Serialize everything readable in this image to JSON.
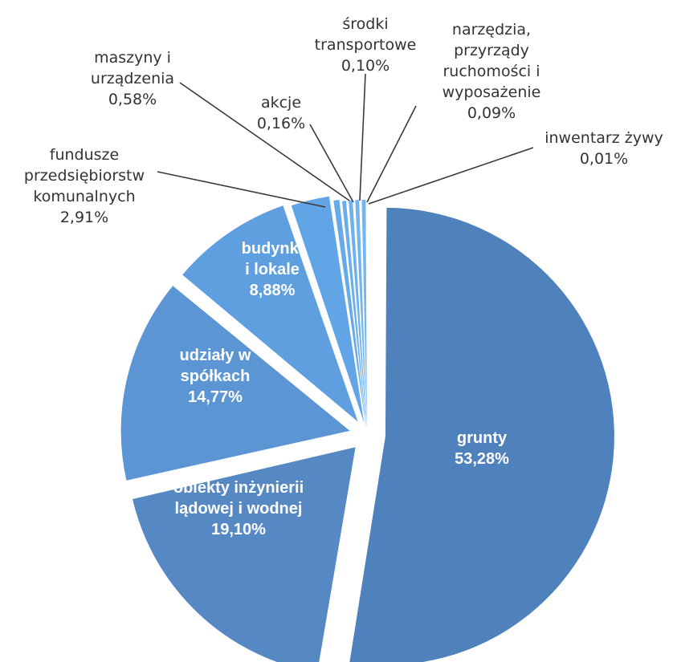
{
  "chart_data": {
    "type": "pie",
    "title": "",
    "legend": "none",
    "slices": [
      {
        "name": "grunty",
        "label_lines": [
          "grunty"
        ],
        "value": 53.28,
        "value_text": "53,28%",
        "color": "#4f81bd",
        "label_position": "inside"
      },
      {
        "name": "obiekty inżynierii lądowej i wodnej",
        "label_lines": [
          "obiekty inżynierii",
          "lądowej i wodnej"
        ],
        "value": 19.1,
        "value_text": "19,10%",
        "color": "#5689c4",
        "label_position": "inside"
      },
      {
        "name": "udziały w spółkach",
        "label_lines": [
          "udziały w",
          "spółkach"
        ],
        "value": 14.77,
        "value_text": "14,77%",
        "color": "#5b95d4",
        "label_position": "inside"
      },
      {
        "name": "budynki i lokale",
        "label_lines": [
          "budynki",
          "i lokale"
        ],
        "value": 8.88,
        "value_text": "8,88%",
        "color": "#5f9fe0",
        "label_position": "inside"
      },
      {
        "name": "fundusze przedsiębiorstw komunalnych",
        "label_lines": [
          "fundusze",
          "przedsiębiorstw",
          "komunalnych"
        ],
        "value": 2.91,
        "value_text": "2,91%",
        "color": "#62a5e6",
        "label_position": "outside"
      },
      {
        "name": "maszyny i urządzenia",
        "label_lines": [
          "maszyny i",
          "urządzenia"
        ],
        "value": 0.58,
        "value_text": "0,58%",
        "color": "#66aaea",
        "label_position": "outside"
      },
      {
        "name": "akcje",
        "label_lines": [
          "akcje"
        ],
        "value": 0.16,
        "value_text": "0,16%",
        "color": "#6aaeed",
        "label_position": "outside"
      },
      {
        "name": "środki transportowe",
        "label_lines": [
          "środki",
          "transportowe"
        ],
        "value": 0.1,
        "value_text": "0,10%",
        "color": "#6db1ef",
        "label_position": "outside"
      },
      {
        "name": "narzędzia, przyrządy ruchomości i wyposażenie",
        "label_lines": [
          "narzędzia,",
          "przyrządy",
          "ruchomości i",
          "wyposażenie"
        ],
        "value": 0.09,
        "value_text": "0,09%",
        "color": "#70b4f0",
        "label_position": "outside"
      },
      {
        "name": "inwentarz żywy",
        "label_lines": [
          "inwentarz żywy"
        ],
        "value": 0.01,
        "value_text": "0,01%",
        "color": "#73b7f2",
        "label_position": "outside"
      }
    ]
  }
}
